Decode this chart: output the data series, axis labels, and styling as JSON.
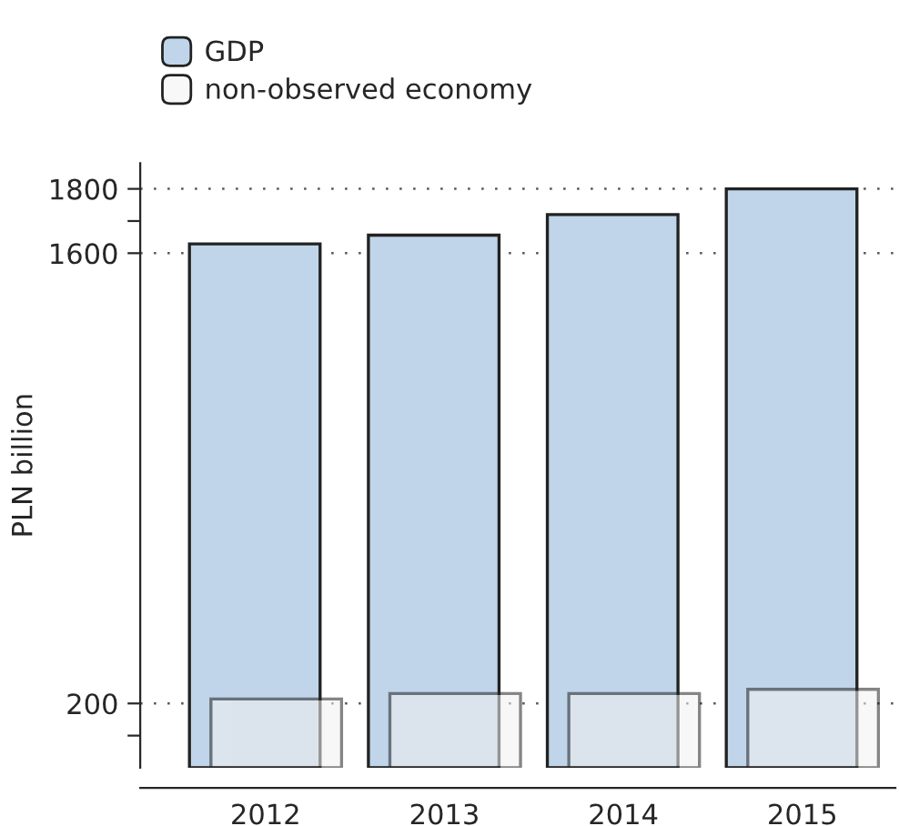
{
  "chart_data": {
    "type": "bar",
    "ylabel": "PLN billion",
    "categories": [
      "2012",
      "2013",
      "2014",
      "2015"
    ],
    "series": [
      {
        "name": "GDP",
        "color": "#c0d5e9",
        "values": [
          1629,
          1656,
          1720,
          1800
        ]
      },
      {
        "name": "non-observed economy",
        "color": "#f2f2f2",
        "values": [
          214,
          231,
          231,
          244
        ]
      }
    ],
    "ylim": [
      0,
      1880
    ],
    "yticks": [
      {
        "value": 100,
        "label": null
      },
      200,
      1600,
      {
        "value": 1700,
        "label": null
      },
      1800
    ],
    "grid": "y",
    "legend": "top left"
  }
}
